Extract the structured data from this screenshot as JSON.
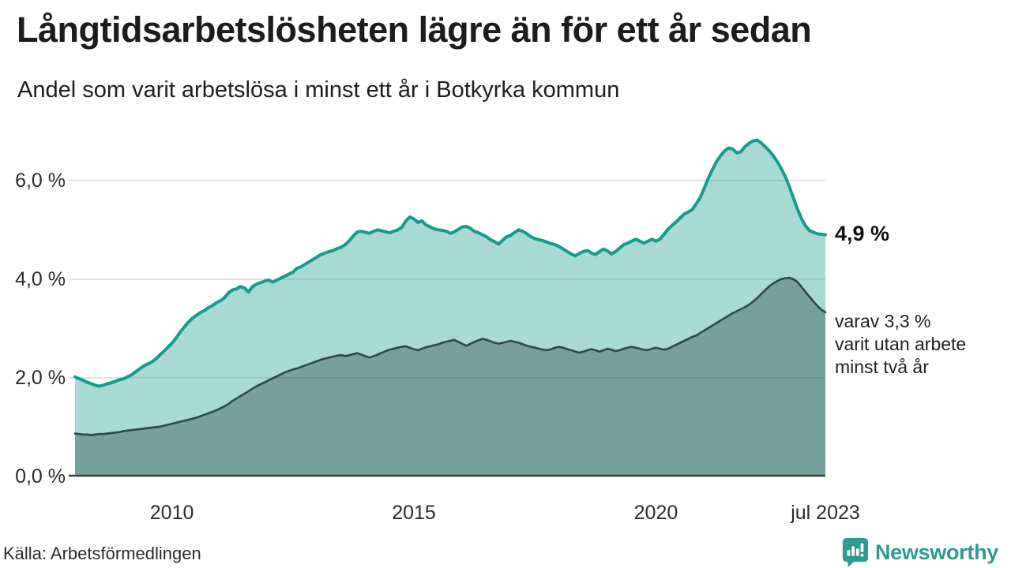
{
  "header": {
    "title": "Långtidsarbetslösheten lägre än för ett år sedan",
    "subtitle": "Andel som varit arbetslösa i minst ett år i Botkyrka kommun"
  },
  "chart_data": {
    "type": "area",
    "title": "Långtidsarbetslösheten lägre än för ett år sedan",
    "subtitle": "Andel som varit arbetslösa i minst ett år i Botkyrka kommun",
    "unit": "%",
    "x_start": "jan 2008",
    "x_end": "jul 2023",
    "x_resolution": "monthly",
    "ylim": [
      0,
      7.02
    ],
    "grid": "horizontal",
    "y_ticks": [
      {
        "label": "0,0 %",
        "value": 0
      },
      {
        "label": "2,0 %",
        "value": 2
      },
      {
        "label": "4,0 %",
        "value": 4
      },
      {
        "label": "6,0 %",
        "value": 6
      }
    ],
    "x_ticks": [
      {
        "label": "2010",
        "month_index": 24
      },
      {
        "label": "2015",
        "month_index": 84
      },
      {
        "label": "2020",
        "month_index": 144
      },
      {
        "label": "jul 2023",
        "month_index": 186
      }
    ],
    "series": [
      {
        "name": "Andel som varit arbetslösa i minst ett år",
        "line_color": "#149c8c",
        "fill_color": "rgba(26,156,142,0.38)",
        "line_width": 4,
        "last_value": 4.9,
        "values": [
          2.02,
          1.98,
          1.95,
          1.91,
          1.88,
          1.85,
          1.83,
          1.85,
          1.88,
          1.9,
          1.93,
          1.96,
          1.98,
          2.02,
          2.06,
          2.12,
          2.18,
          2.24,
          2.28,
          2.32,
          2.38,
          2.46,
          2.54,
          2.62,
          2.7,
          2.8,
          2.92,
          3.02,
          3.12,
          3.2,
          3.26,
          3.32,
          3.36,
          3.42,
          3.46,
          3.52,
          3.56,
          3.62,
          3.72,
          3.78,
          3.8,
          3.85,
          3.82,
          3.74,
          3.85,
          3.9,
          3.93,
          3.96,
          3.98,
          3.94,
          3.98,
          4.02,
          4.06,
          4.1,
          4.14,
          4.22,
          4.25,
          4.3,
          4.35,
          4.4,
          4.45,
          4.5,
          4.53,
          4.56,
          4.58,
          4.62,
          4.65,
          4.7,
          4.78,
          4.88,
          4.96,
          4.97,
          4.95,
          4.93,
          4.97,
          5.0,
          4.98,
          4.96,
          4.94,
          4.97,
          5.0,
          5.05,
          5.18,
          5.26,
          5.22,
          5.15,
          5.18,
          5.1,
          5.06,
          5.02,
          5.0,
          4.99,
          4.97,
          4.93,
          4.96,
          5.01,
          5.06,
          5.07,
          5.03,
          4.97,
          4.94,
          4.9,
          4.86,
          4.8,
          4.76,
          4.71,
          4.79,
          4.86,
          4.89,
          4.95,
          5.0,
          4.97,
          4.92,
          4.86,
          4.82,
          4.8,
          4.78,
          4.75,
          4.72,
          4.7,
          4.66,
          4.61,
          4.56,
          4.51,
          4.47,
          4.52,
          4.56,
          4.58,
          4.53,
          4.5,
          4.56,
          4.61,
          4.57,
          4.51,
          4.56,
          4.63,
          4.7,
          4.73,
          4.77,
          4.81,
          4.77,
          4.73,
          4.77,
          4.81,
          4.77,
          4.81,
          4.91,
          5.01,
          5.09,
          5.16,
          5.24,
          5.32,
          5.36,
          5.41,
          5.53,
          5.66,
          5.85,
          6.05,
          6.22,
          6.38,
          6.5,
          6.6,
          6.66,
          6.64,
          6.56,
          6.58,
          6.68,
          6.75,
          6.8,
          6.82,
          6.77,
          6.69,
          6.61,
          6.51,
          6.39,
          6.25,
          6.09,
          5.89,
          5.66,
          5.44,
          5.24,
          5.09,
          4.99,
          4.95,
          4.92,
          4.91,
          4.9
        ]
      },
      {
        "name": "varav utan arbete i minst två år",
        "line_color": "#2c4a45",
        "fill_color": "rgba(40,70,66,0.38)",
        "line_width": 2.6,
        "last_value": 3.3,
        "values": [
          0.87,
          0.86,
          0.85,
          0.85,
          0.84,
          0.85,
          0.86,
          0.86,
          0.87,
          0.88,
          0.89,
          0.9,
          0.92,
          0.93,
          0.94,
          0.95,
          0.96,
          0.97,
          0.98,
          0.99,
          1.0,
          1.01,
          1.03,
          1.05,
          1.07,
          1.09,
          1.11,
          1.13,
          1.15,
          1.17,
          1.19,
          1.22,
          1.25,
          1.28,
          1.31,
          1.34,
          1.38,
          1.42,
          1.47,
          1.53,
          1.58,
          1.63,
          1.68,
          1.73,
          1.78,
          1.83,
          1.87,
          1.91,
          1.95,
          1.99,
          2.03,
          2.07,
          2.11,
          2.14,
          2.17,
          2.19,
          2.22,
          2.25,
          2.28,
          2.31,
          2.34,
          2.37,
          2.39,
          2.41,
          2.43,
          2.45,
          2.46,
          2.44,
          2.46,
          2.48,
          2.5,
          2.47,
          2.44,
          2.41,
          2.44,
          2.47,
          2.51,
          2.54,
          2.57,
          2.59,
          2.61,
          2.63,
          2.64,
          2.61,
          2.58,
          2.56,
          2.59,
          2.62,
          2.64,
          2.66,
          2.68,
          2.71,
          2.73,
          2.75,
          2.77,
          2.73,
          2.69,
          2.65,
          2.69,
          2.73,
          2.76,
          2.79,
          2.77,
          2.74,
          2.71,
          2.69,
          2.71,
          2.73,
          2.75,
          2.73,
          2.71,
          2.68,
          2.65,
          2.63,
          2.61,
          2.59,
          2.57,
          2.56,
          2.58,
          2.61,
          2.63,
          2.61,
          2.58,
          2.56,
          2.53,
          2.51,
          2.53,
          2.56,
          2.58,
          2.56,
          2.53,
          2.56,
          2.59,
          2.57,
          2.54,
          2.56,
          2.59,
          2.61,
          2.63,
          2.61,
          2.59,
          2.57,
          2.56,
          2.59,
          2.61,
          2.59,
          2.57,
          2.59,
          2.63,
          2.67,
          2.71,
          2.75,
          2.79,
          2.83,
          2.86,
          2.91,
          2.96,
          3.01,
          3.06,
          3.11,
          3.16,
          3.21,
          3.26,
          3.31,
          3.35,
          3.39,
          3.43,
          3.48,
          3.54,
          3.61,
          3.69,
          3.77,
          3.85,
          3.91,
          3.96,
          4.0,
          4.02,
          4.03,
          4.0,
          3.95,
          3.85,
          3.75,
          3.65,
          3.55,
          3.46,
          3.38,
          3.33
        ]
      }
    ],
    "annotations": {
      "total_label": "4,9 %",
      "two_year_lines": [
        "varav 3,3 %",
        "varit utan arbete",
        "minst två år"
      ]
    }
  },
  "colors": {
    "grid": "#e2e2e2",
    "axis": "#3b3b3b",
    "brand_teal": "#2e9a90"
  },
  "footer": {
    "source": "Källa: Arbetsförmedlingen",
    "brand": "Newsworthy"
  }
}
